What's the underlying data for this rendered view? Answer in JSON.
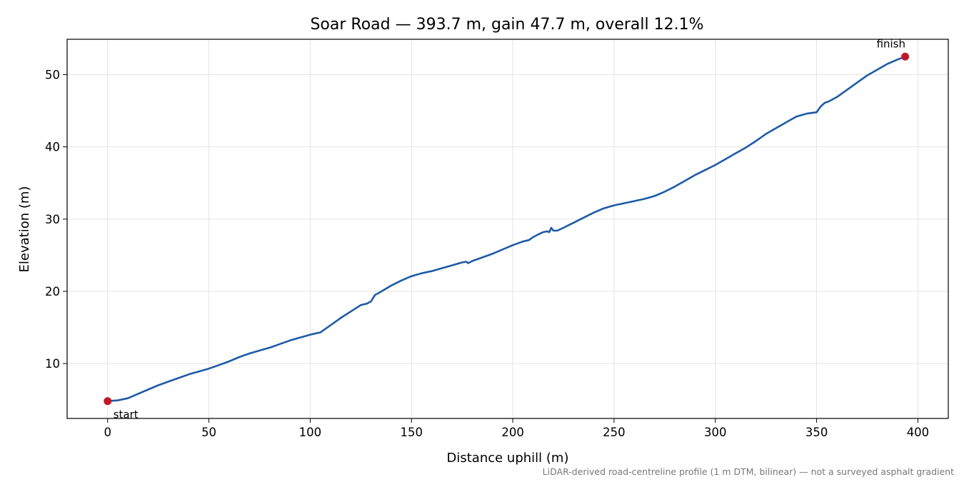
{
  "chart_data": {
    "type": "line",
    "title": "Soar Road — 393.7 m, gain 47.7 m, overall 12.1%",
    "xlabel": "Distance uphill (m)",
    "ylabel": "Elevation (m)",
    "xlim": [
      -20,
      415
    ],
    "ylim": [
      2.4,
      54.9
    ],
    "xticks": [
      0,
      50,
      100,
      150,
      200,
      250,
      300,
      350,
      400
    ],
    "yticks": [
      10,
      20,
      30,
      40,
      50
    ],
    "grid": true,
    "line_color": "#1f5aa6",
    "marker_color": "#c0182a",
    "series": [
      {
        "x": [
          0,
          5,
          10,
          15,
          20,
          25,
          30,
          35,
          40,
          45,
          50,
          55,
          60,
          65,
          70,
          75,
          80,
          85,
          90,
          95,
          100,
          103,
          105,
          110,
          115,
          120,
          125,
          128,
          130,
          132,
          134,
          140,
          145,
          150,
          155,
          160,
          165,
          170,
          175,
          177,
          178,
          180,
          185,
          190,
          195,
          200,
          205,
          208,
          210,
          212,
          215,
          217,
          218,
          219,
          220,
          222,
          225,
          230,
          235,
          240,
          245,
          250,
          255,
          260,
          265,
          270,
          275,
          280,
          285,
          290,
          295,
          300,
          305,
          310,
          315,
          320,
          325,
          330,
          335,
          340,
          345,
          350,
          352,
          354,
          356,
          360,
          365,
          370,
          375,
          380,
          385,
          390,
          393.7
        ],
        "y": [
          4.8,
          4.9,
          5.2,
          5.8,
          6.4,
          7.0,
          7.5,
          8.0,
          8.5,
          8.9,
          9.3,
          9.8,
          10.3,
          10.9,
          11.4,
          11.8,
          12.2,
          12.7,
          13.2,
          13.6,
          14.0,
          14.2,
          14.3,
          15.3,
          16.3,
          17.2,
          18.1,
          18.3,
          18.6,
          19.5,
          19.8,
          20.8,
          21.5,
          22.1,
          22.5,
          22.8,
          23.2,
          23.6,
          24.0,
          24.1,
          23.9,
          24.2,
          24.7,
          25.2,
          25.8,
          26.4,
          26.9,
          27.1,
          27.5,
          27.8,
          28.2,
          28.3,
          28.2,
          28.8,
          28.4,
          28.4,
          28.8,
          29.5,
          30.2,
          30.9,
          31.5,
          31.9,
          32.2,
          32.5,
          32.8,
          33.2,
          33.8,
          34.5,
          35.3,
          36.1,
          36.8,
          37.5,
          38.3,
          39.1,
          39.9,
          40.8,
          41.8,
          42.6,
          43.4,
          44.2,
          44.6,
          44.8,
          45.6,
          46.1,
          46.3,
          46.9,
          47.9,
          48.9,
          49.9,
          50.7,
          51.5,
          52.1,
          52.5
        ]
      }
    ],
    "annotations": [
      {
        "text": "start",
        "x": 0,
        "y": 4.8
      },
      {
        "text": "finish",
        "x": 393.7,
        "y": 52.5
      }
    ]
  },
  "footnote": "LiDAR-derived road-centreline profile (1 m DTM, bilinear) — not a surveyed asphalt gradient"
}
